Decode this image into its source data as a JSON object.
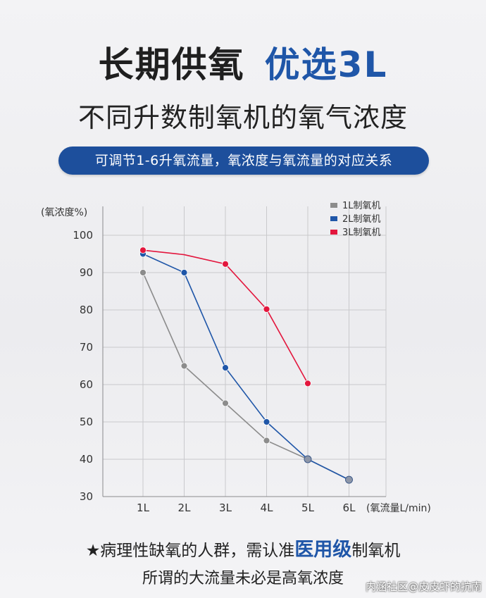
{
  "header": {
    "title_main": "长期供氧",
    "title_highlight": "优选3L",
    "subtitle": "不同升数制氧机的氧气浓度",
    "banner": "可调节1-6升氧流量，氧浓度与氧流量的对应关系"
  },
  "chart_data": {
    "type": "line",
    "ylabel": "(氧浓度%)",
    "xlabel": "(氧流量L/min)",
    "categories": [
      "1L",
      "2L",
      "3L",
      "4L",
      "5L",
      "6L"
    ],
    "ylim": [
      30,
      100
    ],
    "yticks": [
      30,
      40,
      50,
      60,
      70,
      80,
      90,
      100
    ],
    "grid": true,
    "legend_position": "top-right",
    "series": [
      {
        "name": "1L制氧机",
        "color": "#8c8c8c",
        "values": [
          90,
          65,
          55,
          45,
          40,
          34.5
        ]
      },
      {
        "name": "2L制氧机",
        "color": "#1f56a8",
        "values": [
          95,
          90,
          64.5,
          50,
          40,
          34.5
        ]
      },
      {
        "name": "3L制氧机",
        "color": "#e3163d",
        "values": [
          96,
          null,
          92.3,
          80.2,
          60.3,
          null
        ]
      }
    ]
  },
  "footer": {
    "note_prefix": "★病理性缺氧的人群，需认准",
    "note_emphasis": "医用级",
    "note_suffix": "制氧机",
    "note_line2": "所谓的大流量未必是高氧浓度",
    "watermark": "内涵社区@皮皮虾的抗南"
  }
}
